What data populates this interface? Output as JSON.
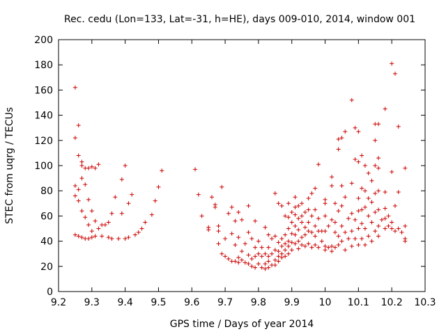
{
  "chart_data": {
    "type": "scatter",
    "title": "Rec. cedu (Lon=133, Lat=-31, h=HE), days 009-010, 2014, window 001",
    "xlabel": "GPS time / Days of year 2014",
    "ylabel": "STEC from uqrg / TECUs",
    "xlim": [
      9.2,
      10.3
    ],
    "ylim": [
      0,
      200
    ],
    "xticks": [
      9.2,
      9.3,
      9.4,
      9.5,
      9.6,
      9.7,
      9.8,
      9.9,
      10,
      10.1,
      10.2,
      10.3
    ],
    "xtick_labels": [
      "9.2",
      "9.3",
      "9.4",
      "9.5",
      "9.6",
      "9.7",
      "9.8",
      "9.9",
      "10",
      "10.1",
      "10.2",
      "10.3"
    ],
    "yticks": [
      0,
      20,
      40,
      60,
      80,
      100,
      120,
      140,
      160,
      180,
      200
    ],
    "ytick_labels": [
      "0",
      "20",
      "40",
      "60",
      "80",
      "100",
      "120",
      "140",
      "160",
      "180",
      "200"
    ],
    "grid": false,
    "marker": "+",
    "color": "#cc0000",
    "series": [
      {
        "name": "STEC",
        "points": [
          [
            9.25,
            162
          ],
          [
            9.25,
            122
          ],
          [
            9.25,
            84
          ],
          [
            9.25,
            76
          ],
          [
            9.25,
            45
          ],
          [
            9.26,
            132
          ],
          [
            9.26,
            108
          ],
          [
            9.26,
            81
          ],
          [
            9.26,
            72
          ],
          [
            9.26,
            44
          ],
          [
            9.27,
            103
          ],
          [
            9.27,
            100
          ],
          [
            9.27,
            90
          ],
          [
            9.27,
            64
          ],
          [
            9.27,
            43
          ],
          [
            9.28,
            98
          ],
          [
            9.28,
            85
          ],
          [
            9.28,
            59
          ],
          [
            9.28,
            42
          ],
          [
            9.29,
            98
          ],
          [
            9.29,
            73
          ],
          [
            9.29,
            53
          ],
          [
            9.29,
            42
          ],
          [
            9.3,
            99
          ],
          [
            9.3,
            64
          ],
          [
            9.3,
            48
          ],
          [
            9.3,
            43
          ],
          [
            9.31,
            98
          ],
          [
            9.31,
            56
          ],
          [
            9.31,
            44
          ],
          [
            9.32,
            101
          ],
          [
            9.32,
            50
          ],
          [
            9.33,
            53
          ],
          [
            9.33,
            44
          ],
          [
            9.34,
            53
          ],
          [
            9.35,
            55
          ],
          [
            9.35,
            43
          ],
          [
            9.36,
            62
          ],
          [
            9.36,
            42
          ],
          [
            9.37,
            75
          ],
          [
            9.38,
            42
          ],
          [
            9.39,
            89
          ],
          [
            9.39,
            62
          ],
          [
            9.4,
            100
          ],
          [
            9.4,
            42
          ],
          [
            9.41,
            70
          ],
          [
            9.41,
            43
          ],
          [
            9.42,
            77
          ],
          [
            9.43,
            45
          ],
          [
            9.44,
            47
          ],
          [
            9.45,
            50
          ],
          [
            9.46,
            55
          ],
          [
            9.48,
            61
          ],
          [
            9.49,
            72
          ],
          [
            9.5,
            83
          ],
          [
            9.51,
            96
          ],
          [
            9.61,
            97
          ],
          [
            9.62,
            77
          ],
          [
            9.63,
            60
          ],
          [
            9.65,
            51
          ],
          [
            9.65,
            49
          ],
          [
            9.66,
            75
          ],
          [
            9.67,
            69
          ],
          [
            9.67,
            67
          ],
          [
            9.68,
            52
          ],
          [
            9.68,
            38
          ],
          [
            9.68,
            48
          ],
          [
            9.69,
            83
          ],
          [
            9.69,
            30
          ],
          [
            9.7,
            42
          ],
          [
            9.7,
            28
          ],
          [
            9.71,
            62
          ],
          [
            9.71,
            26
          ],
          [
            9.72,
            67
          ],
          [
            9.72,
            46
          ],
          [
            9.72,
            24
          ],
          [
            9.73,
            56
          ],
          [
            9.73,
            37
          ],
          [
            9.73,
            24
          ],
          [
            9.74,
            63
          ],
          [
            9.74,
            43
          ],
          [
            9.74,
            27
          ],
          [
            9.74,
            23
          ],
          [
            9.75,
            57
          ],
          [
            9.75,
            32
          ],
          [
            9.75,
            25
          ],
          [
            9.76,
            38
          ],
          [
            9.76,
            23
          ],
          [
            9.77,
            68
          ],
          [
            9.77,
            47
          ],
          [
            9.77,
            29
          ],
          [
            9.77,
            22
          ],
          [
            9.78,
            42
          ],
          [
            9.78,
            26
          ],
          [
            9.78,
            20
          ],
          [
            9.79,
            56
          ],
          [
            9.79,
            35
          ],
          [
            9.79,
            28
          ],
          [
            9.79,
            19
          ],
          [
            9.8,
            40
          ],
          [
            9.8,
            30
          ],
          [
            9.8,
            22
          ],
          [
            9.81,
            35
          ],
          [
            9.81,
            28
          ],
          [
            9.81,
            19
          ],
          [
            9.82,
            51
          ],
          [
            9.82,
            30
          ],
          [
            9.82,
            22
          ],
          [
            9.82,
            18
          ],
          [
            9.83,
            45
          ],
          [
            9.83,
            35
          ],
          [
            9.83,
            28
          ],
          [
            9.83,
            24
          ],
          [
            9.83,
            19
          ],
          [
            9.84,
            42
          ],
          [
            9.84,
            30
          ],
          [
            9.84,
            21
          ],
          [
            9.85,
            78
          ],
          [
            9.85,
            44
          ],
          [
            9.85,
            33
          ],
          [
            9.85,
            25
          ],
          [
            9.85,
            21
          ],
          [
            9.86,
            70
          ],
          [
            9.86,
            39
          ],
          [
            9.86,
            32
          ],
          [
            9.86,
            28
          ],
          [
            9.86,
            24
          ],
          [
            9.87,
            68
          ],
          [
            9.87,
            42
          ],
          [
            9.87,
            36
          ],
          [
            9.87,
            30
          ],
          [
            9.87,
            27
          ],
          [
            9.88,
            60
          ],
          [
            9.88,
            45
          ],
          [
            9.88,
            38
          ],
          [
            9.88,
            33
          ],
          [
            9.88,
            28
          ],
          [
            9.89,
            70
          ],
          [
            9.89,
            59
          ],
          [
            9.89,
            50
          ],
          [
            9.89,
            40
          ],
          [
            9.89,
            36
          ],
          [
            9.89,
            30
          ],
          [
            9.9,
            63
          ],
          [
            9.9,
            55
          ],
          [
            9.9,
            46
          ],
          [
            9.9,
            39
          ],
          [
            9.9,
            33
          ],
          [
            9.91,
            75
          ],
          [
            9.91,
            67
          ],
          [
            9.91,
            61
          ],
          [
            9.91,
            52
          ],
          [
            9.91,
            45
          ],
          [
            9.91,
            38
          ],
          [
            9.92,
            68
          ],
          [
            9.92,
            58
          ],
          [
            9.92,
            49
          ],
          [
            9.92,
            40
          ],
          [
            9.92,
            34
          ],
          [
            9.93,
            70
          ],
          [
            9.93,
            60
          ],
          [
            9.93,
            55
          ],
          [
            9.93,
            43
          ],
          [
            9.93,
            37
          ],
          [
            9.94,
            63
          ],
          [
            9.94,
            51
          ],
          [
            9.94,
            45
          ],
          [
            9.94,
            36
          ],
          [
            9.95,
            74
          ],
          [
            9.95,
            65
          ],
          [
            9.95,
            55
          ],
          [
            9.95,
            48
          ],
          [
            9.95,
            38
          ],
          [
            9.96,
            78
          ],
          [
            9.96,
            60
          ],
          [
            9.96,
            47
          ],
          [
            9.96,
            35
          ],
          [
            9.97,
            82
          ],
          [
            9.97,
            65
          ],
          [
            9.97,
            52
          ],
          [
            9.97,
            44
          ],
          [
            9.97,
            37
          ],
          [
            9.98,
            101
          ],
          [
            9.98,
            58
          ],
          [
            9.98,
            48
          ],
          [
            9.98,
            35
          ],
          [
            9.99,
            48
          ],
          [
            9.99,
            40
          ],
          [
            10,
            73
          ],
          [
            10,
            70
          ],
          [
            10,
            60
          ],
          [
            10,
            48
          ],
          [
            10,
            36
          ],
          [
            10,
            33
          ],
          [
            10.01,
            52
          ],
          [
            10.01,
            35
          ],
          [
            10.02,
            91
          ],
          [
            10.02,
            84
          ],
          [
            10.02,
            57
          ],
          [
            10.02,
            36
          ],
          [
            10.02,
            32
          ],
          [
            10.03,
            70
          ],
          [
            10.03,
            55
          ],
          [
            10.03,
            47
          ],
          [
            10.03,
            35
          ],
          [
            10.04,
            121
          ],
          [
            10.04,
            113
          ],
          [
            10.04,
            64
          ],
          [
            10.04,
            44
          ],
          [
            10.04,
            37
          ],
          [
            10.05,
            122
          ],
          [
            10.05,
            84
          ],
          [
            10.05,
            68
          ],
          [
            10.05,
            52
          ],
          [
            10.05,
            40
          ],
          [
            10.06,
            127
          ],
          [
            10.06,
            75
          ],
          [
            10.06,
            47
          ],
          [
            10.06,
            33
          ],
          [
            10.07,
            58
          ],
          [
            10.07,
            42
          ],
          [
            10.08,
            152
          ],
          [
            10.08,
            86
          ],
          [
            10.08,
            62
          ],
          [
            10.08,
            48
          ],
          [
            10.08,
            36
          ],
          [
            10.09,
            130
          ],
          [
            10.09,
            105
          ],
          [
            10.09,
            57
          ],
          [
            10.09,
            42
          ],
          [
            10.1,
            127
          ],
          [
            10.1,
            103
          ],
          [
            10.1,
            74
          ],
          [
            10.1,
            64
          ],
          [
            10.1,
            50
          ],
          [
            10.1,
            37
          ],
          [
            10.11,
            108
          ],
          [
            10.11,
            82
          ],
          [
            10.11,
            65
          ],
          [
            10.11,
            54
          ],
          [
            10.11,
            42
          ],
          [
            10.12,
            100
          ],
          [
            10.12,
            80
          ],
          [
            10.12,
            67
          ],
          [
            10.12,
            50
          ],
          [
            10.12,
            37
          ],
          [
            10.13,
            94
          ],
          [
            10.13,
            74
          ],
          [
            10.13,
            60
          ],
          [
            10.13,
            44
          ],
          [
            10.14,
            88
          ],
          [
            10.14,
            71
          ],
          [
            10.14,
            55
          ],
          [
            10.14,
            40
          ],
          [
            10.15,
            133
          ],
          [
            10.15,
            120
          ],
          [
            10.15,
            100
          ],
          [
            10.15,
            78
          ],
          [
            10.15,
            63
          ],
          [
            10.15,
            48
          ],
          [
            10.16,
            133
          ],
          [
            10.16,
            106
          ],
          [
            10.16,
            98
          ],
          [
            10.16,
            80
          ],
          [
            10.16,
            65
          ],
          [
            10.16,
            52
          ],
          [
            10.16,
            44
          ],
          [
            10.17,
            57
          ],
          [
            10.18,
            145
          ],
          [
            10.18,
            79
          ],
          [
            10.18,
            66
          ],
          [
            10.18,
            58
          ],
          [
            10.18,
            50
          ],
          [
            10.19,
            60
          ],
          [
            10.19,
            52
          ],
          [
            10.2,
            181
          ],
          [
            10.2,
            95
          ],
          [
            10.2,
            55
          ],
          [
            10.2,
            50
          ],
          [
            10.21,
            173
          ],
          [
            10.21,
            68
          ],
          [
            10.21,
            48
          ],
          [
            10.22,
            131
          ],
          [
            10.22,
            79
          ],
          [
            10.22,
            50
          ],
          [
            10.23,
            47
          ],
          [
            10.24,
            98
          ],
          [
            10.24,
            52
          ],
          [
            10.24,
            42
          ],
          [
            10.24,
            40
          ]
        ]
      }
    ]
  }
}
